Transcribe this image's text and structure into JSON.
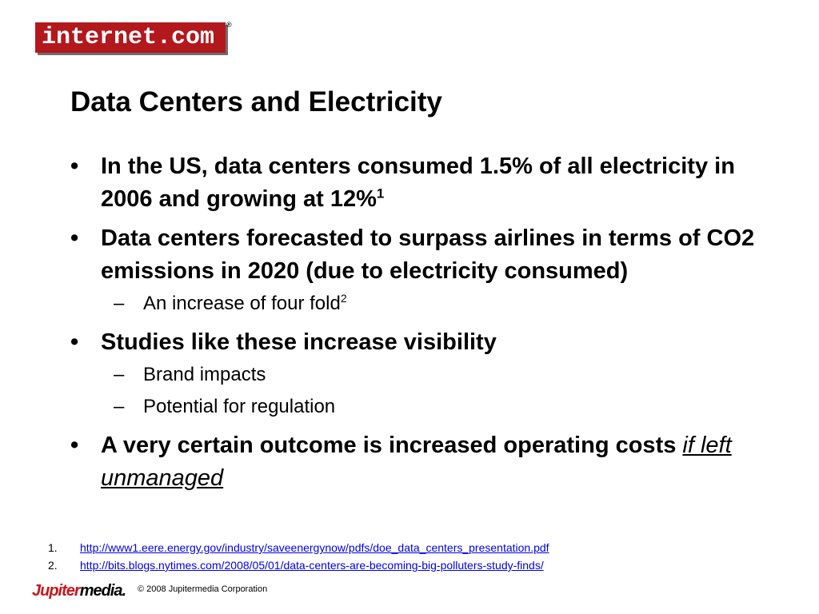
{
  "header": {
    "logo_main": "internet",
    "logo_suffix": ".com",
    "logo_reg": "®"
  },
  "slide": {
    "title": "Data Centers and Electricity",
    "bullets": [
      {
        "marker": "•",
        "text": "In the US, data centers consumed 1.5% of all electricity  in 2006 and growing at 12%",
        "sup": "1"
      },
      {
        "marker": "•",
        "text": "Data centers forecasted to surpass airlines in terms of CO2 emissions in 2020 (due to electricity consumed)",
        "subs": [
          {
            "marker": "–",
            "text": "An increase of four fold",
            "sup": "2"
          }
        ]
      },
      {
        "marker": "•",
        "text": "Studies like these increase visibility",
        "subs": [
          {
            "marker": "–",
            "text": "Brand impacts"
          },
          {
            "marker": "–",
            "text": "Potential for regulation"
          }
        ]
      },
      {
        "marker": "•",
        "text": "A very certain outcome is increased operating costs ",
        "emphasis": "if left unmanaged"
      }
    ]
  },
  "footnotes": [
    {
      "num": "1.",
      "url": "http://www1.eere.energy.gov/industry/saveenergynow/pdfs/doe_data_centers_presentation.pdf"
    },
    {
      "num": "2.",
      "url": "http://bits.blogs.nytimes.com/2008/05/01/data-centers-are-becoming-big-polluters-study-finds/"
    }
  ],
  "footer": {
    "brand_first": "Jupiter",
    "brand_second": "media",
    "brand_mark": ".",
    "copyright": "© 2008 Jupitermedia Corporation"
  },
  "colors": {
    "logo_red": "#b3181c",
    "link_blue": "#0000ee",
    "brand_red": "#c8161d"
  }
}
